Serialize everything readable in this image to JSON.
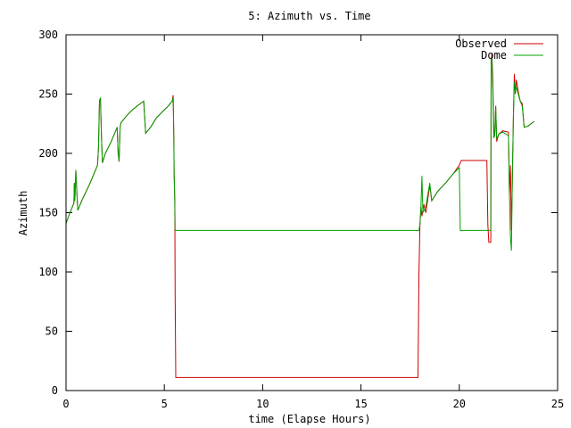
{
  "chart_data": {
    "type": "line",
    "title": "5: Azimuth vs. Time",
    "xlabel": "time (Elapse Hours)",
    "ylabel": "Azimuth",
    "xlim": [
      0,
      25
    ],
    "ylim": [
      0,
      300
    ],
    "xticks": [
      0,
      5,
      10,
      15,
      20,
      25
    ],
    "yticks": [
      0,
      50,
      100,
      150,
      200,
      250,
      300
    ],
    "grid": false,
    "legend_position": "top-right",
    "series": [
      {
        "name": "Observed",
        "color": "#cc0000",
        "points": [
          [
            0.0,
            141
          ],
          [
            0.2,
            150
          ],
          [
            0.4,
            158
          ],
          [
            0.42,
            175
          ],
          [
            0.45,
            160
          ],
          [
            0.5,
            186
          ],
          [
            0.55,
            168
          ],
          [
            0.6,
            152
          ],
          [
            0.8,
            160
          ],
          [
            1.0,
            167
          ],
          [
            1.2,
            174
          ],
          [
            1.4,
            182
          ],
          [
            1.6,
            190
          ],
          [
            1.65,
            205
          ],
          [
            1.7,
            244
          ],
          [
            1.75,
            247
          ],
          [
            1.8,
            215
          ],
          [
            1.85,
            192
          ],
          [
            2.0,
            200
          ],
          [
            2.3,
            210
          ],
          [
            2.6,
            222
          ],
          [
            2.65,
            200
          ],
          [
            2.7,
            193
          ],
          [
            2.75,
            222
          ],
          [
            2.8,
            226
          ],
          [
            2.9,
            228
          ],
          [
            3.1,
            232
          ],
          [
            3.4,
            237
          ],
          [
            3.7,
            241
          ],
          [
            3.95,
            244
          ],
          [
            4.05,
            217
          ],
          [
            4.3,
            222
          ],
          [
            4.6,
            230
          ],
          [
            4.9,
            235
          ],
          [
            5.2,
            240
          ],
          [
            5.4,
            244
          ],
          [
            5.45,
            249
          ],
          [
            5.48,
            215
          ],
          [
            5.5,
            182
          ],
          [
            5.53,
            160
          ],
          [
            5.55,
            80
          ],
          [
            5.58,
            11
          ],
          [
            6.0,
            11
          ],
          [
            10.0,
            11
          ],
          [
            15.0,
            11
          ],
          [
            17.9,
            11
          ],
          [
            17.95,
            100
          ],
          [
            18.0,
            140
          ],
          [
            18.05,
            155
          ],
          [
            18.1,
            147
          ],
          [
            18.2,
            157
          ],
          [
            18.3,
            150
          ],
          [
            18.5,
            173
          ],
          [
            18.6,
            160
          ],
          [
            18.9,
            168
          ],
          [
            19.3,
            175
          ],
          [
            19.7,
            183
          ],
          [
            20.0,
            190
          ],
          [
            20.1,
            194
          ],
          [
            21.0,
            194
          ],
          [
            21.4,
            194
          ],
          [
            21.45,
            140
          ],
          [
            21.5,
            125
          ],
          [
            21.55,
            125
          ],
          [
            21.6,
            125
          ],
          [
            21.62,
            270
          ],
          [
            21.65,
            284
          ],
          [
            21.7,
            265
          ],
          [
            21.75,
            220
          ],
          [
            21.8,
            215
          ],
          [
            21.85,
            240
          ],
          [
            21.9,
            210
          ],
          [
            22.0,
            216
          ],
          [
            22.2,
            219
          ],
          [
            22.5,
            218
          ],
          [
            22.55,
            165
          ],
          [
            22.6,
            190
          ],
          [
            22.65,
            135
          ],
          [
            22.7,
            180
          ],
          [
            22.75,
            230
          ],
          [
            22.8,
            267
          ],
          [
            22.85,
            250
          ],
          [
            22.9,
            262
          ],
          [
            23.0,
            252
          ],
          [
            23.1,
            244
          ],
          [
            23.2,
            242
          ],
          [
            23.3,
            222
          ],
          [
            23.5,
            223
          ],
          [
            23.8,
            227
          ]
        ]
      },
      {
        "name": "Dome",
        "color": "#00a000",
        "points": [
          [
            0.0,
            141
          ],
          [
            0.2,
            150
          ],
          [
            0.4,
            158
          ],
          [
            0.42,
            175
          ],
          [
            0.45,
            160
          ],
          [
            0.5,
            186
          ],
          [
            0.55,
            168
          ],
          [
            0.6,
            152
          ],
          [
            0.8,
            160
          ],
          [
            1.0,
            167
          ],
          [
            1.2,
            174
          ],
          [
            1.4,
            182
          ],
          [
            1.6,
            190
          ],
          [
            1.65,
            205
          ],
          [
            1.7,
            244
          ],
          [
            1.75,
            247
          ],
          [
            1.8,
            215
          ],
          [
            1.85,
            192
          ],
          [
            2.0,
            200
          ],
          [
            2.3,
            210
          ],
          [
            2.6,
            222
          ],
          [
            2.65,
            200
          ],
          [
            2.7,
            193
          ],
          [
            2.75,
            222
          ],
          [
            2.8,
            226
          ],
          [
            2.9,
            228
          ],
          [
            3.1,
            232
          ],
          [
            3.4,
            237
          ],
          [
            3.7,
            241
          ],
          [
            3.95,
            244
          ],
          [
            4.05,
            217
          ],
          [
            4.3,
            222
          ],
          [
            4.6,
            230
          ],
          [
            4.9,
            235
          ],
          [
            5.2,
            240
          ],
          [
            5.4,
            244
          ],
          [
            5.45,
            247
          ],
          [
            5.48,
            215
          ],
          [
            5.5,
            182
          ],
          [
            5.53,
            160
          ],
          [
            5.55,
            135
          ],
          [
            6.0,
            135
          ],
          [
            10.0,
            135
          ],
          [
            15.0,
            135
          ],
          [
            17.95,
            135
          ],
          [
            18.0,
            140
          ],
          [
            18.05,
            155
          ],
          [
            18.1,
            181
          ],
          [
            18.15,
            150
          ],
          [
            18.3,
            155
          ],
          [
            18.5,
            175
          ],
          [
            18.6,
            160
          ],
          [
            18.9,
            168
          ],
          [
            19.3,
            175
          ],
          [
            19.7,
            183
          ],
          [
            20.0,
            188
          ],
          [
            20.05,
            135
          ],
          [
            21.0,
            135
          ],
          [
            21.4,
            135
          ],
          [
            21.45,
            135
          ],
          [
            21.5,
            135
          ],
          [
            21.55,
            135
          ],
          [
            21.6,
            135
          ],
          [
            21.62,
            280
          ],
          [
            21.65,
            280
          ],
          [
            21.7,
            255
          ],
          [
            21.75,
            213
          ],
          [
            21.8,
            215
          ],
          [
            21.85,
            240
          ],
          [
            21.9,
            212
          ],
          [
            22.0,
            216
          ],
          [
            22.2,
            218
          ],
          [
            22.5,
            215
          ],
          [
            22.55,
            165
          ],
          [
            22.6,
            130
          ],
          [
            22.65,
            118
          ],
          [
            22.7,
            180
          ],
          [
            22.75,
            230
          ],
          [
            22.8,
            260
          ],
          [
            22.85,
            252
          ],
          [
            22.9,
            256
          ],
          [
            23.0,
            250
          ],
          [
            23.1,
            244
          ],
          [
            23.2,
            240
          ],
          [
            23.3,
            222
          ],
          [
            23.5,
            223
          ],
          [
            23.8,
            227
          ]
        ]
      }
    ]
  }
}
